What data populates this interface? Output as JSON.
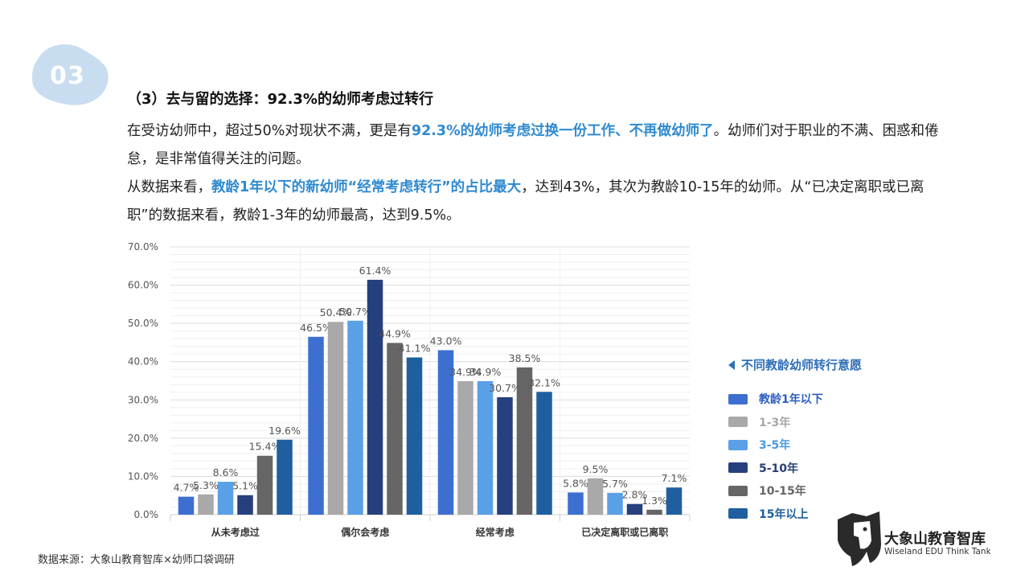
{
  "section_number": "03",
  "heading": "（3）去与留的选择：92.3%的幼师考虑过转行",
  "paragraph1": {
    "a": "在受访幼师中，超过50%对现状不满，更是有",
    "b": "92.3%的幼师考虑过换一份工作、不再做幼师了",
    "c": "。幼师们对于职业的不满、困惑和倦怠，是非常值得关注的问题。"
  },
  "paragraph2": {
    "a": "从数据来看，",
    "b": "教龄1年以下的新幼师“经常考虑转行”的占比最大",
    "c": "，达到43%，其次为教龄10-15年的幼师。从“已决定离职或已离职”的数据来看，教龄1-3年的幼师最高，达到9.5%。"
  },
  "legend_title": "不同教龄幼师转行意愿",
  "source": "数据来源：大象山教育智库×幼师口袋调研",
  "logo": {
    "cn": "大象山教育智库",
    "en": "Wiseland EDU Think Tank"
  },
  "colors": {
    "accent": "#2f6fb6",
    "highlight": "#2f8ad0",
    "badge": "#c9ddf1"
  },
  "chart_data": {
    "type": "bar",
    "title": "",
    "xlabel": "",
    "ylabel": "",
    "ylim": [
      0,
      70
    ],
    "yticks": [
      "0.0%",
      "10.0%",
      "20.0%",
      "30.0%",
      "40.0%",
      "50.0%",
      "60.0%",
      "70.0%"
    ],
    "categories": [
      "从未考虑过",
      "偶尔会考虑",
      "经常考虑",
      "已决定离职或已离职"
    ],
    "legend_position": "right",
    "grid": true,
    "series": [
      {
        "name": "教龄1年以下",
        "color": "#3d6fd0",
        "label_color": "#2f5fc0",
        "values": [
          4.7,
          46.5,
          43.0,
          5.8
        ],
        "labels": [
          "4.7%",
          "46.5%",
          "43.0%",
          "5.8%"
        ]
      },
      {
        "name": "1-3年",
        "color": "#a9a9a9",
        "label_color": "#a8a8a8",
        "values": [
          5.3,
          50.4,
          34.9,
          9.5
        ],
        "labels": [
          "5.3%",
          "50.4%",
          "34.9%",
          "9.5%"
        ]
      },
      {
        "name": "3-5年",
        "color": "#5aa0e6",
        "label_color": "#4a9ae0",
        "values": [
          8.6,
          50.7,
          34.9,
          5.7
        ],
        "labels": [
          "8.6%",
          "50.7%",
          "34.9%",
          "5.7%"
        ]
      },
      {
        "name": "5-10年",
        "color": "#263f7d",
        "label_color": "#2a3f78",
        "values": [
          5.1,
          61.4,
          30.7,
          2.8
        ],
        "labels": [
          "5.1%",
          "61.4%",
          "30.7%",
          "2.8%"
        ]
      },
      {
        "name": "10-15年",
        "color": "#666666",
        "label_color": "#666666",
        "values": [
          15.4,
          44.9,
          38.5,
          1.3
        ],
        "labels": [
          "15.4%",
          "44.9%",
          "38.5%",
          "1.3%"
        ]
      },
      {
        "name": "15年以上",
        "color": "#1f5f9f",
        "label_color": "#1f5f9f",
        "values": [
          19.6,
          41.1,
          32.1,
          7.1
        ],
        "labels": [
          "19.6%",
          "41.1%",
          "32.1%",
          "7.1%"
        ]
      }
    ]
  }
}
